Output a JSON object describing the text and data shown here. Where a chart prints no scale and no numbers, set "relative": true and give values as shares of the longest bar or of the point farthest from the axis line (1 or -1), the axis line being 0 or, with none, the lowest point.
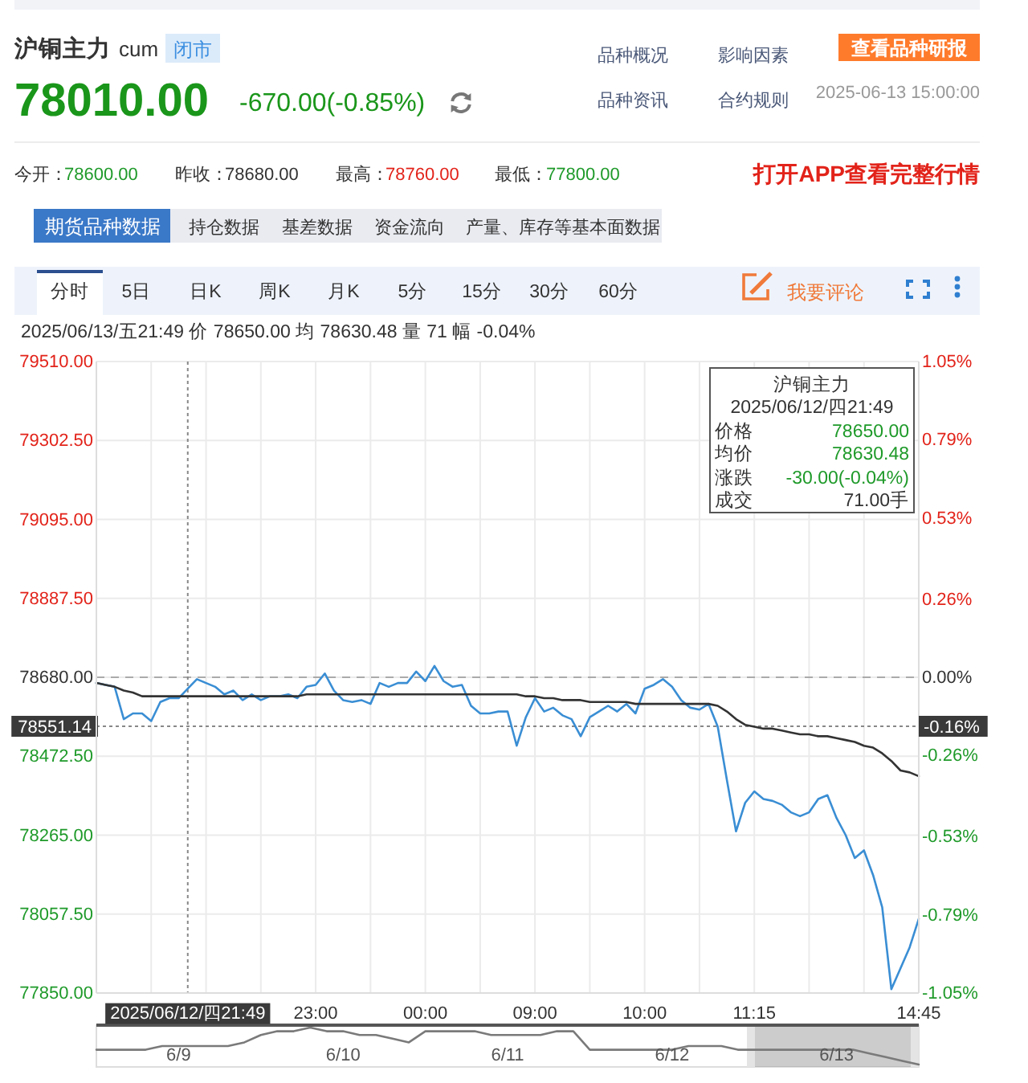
{
  "chart_data": [
    {
      "type": "line",
      "title": "沪铜主力",
      "subtitle": "cum",
      "annotations": [
        "闭市",
        "78010.00",
        "-670.00(-0.85%)",
        "品种概况",
        "影响因素",
        "查看品种研报",
        "品种资讯",
        "合约规则",
        "2025-06-13 15:00:00",
        "今开：",
        "78600.00",
        "昨收：",
        "78680.00",
        "最高：",
        "78760.00",
        "最低：",
        "77800.00",
        "打开APP查看完整行情",
        "期货品种数据",
        "持仓数据",
        "基差数据",
        "资金流向",
        "产量、库存等基本面数据",
        "分时",
        "5日",
        "日K",
        "周K",
        "月K",
        "5分",
        "15分",
        "30分",
        "60分",
        "我要评论",
        "2025/06/13/五21:49 价 78650.00 均 78630.48 量 71 幅 -0.04%",
        "沪铜主力",
        "2025/06/12/四21:49",
        "价格",
        "78650.00",
        "均价",
        "78630.48",
        "涨跌",
        "-30.00(-0.04%)",
        "成交",
        "71.00手",
        "-0.16%"
      ],
      "categories": [
        null,
        null,
        null,
        null,
        null,
        null,
        null,
        null,
        null,
        null,
        "2025/06/12/四21:49",
        null,
        null,
        null,
        null,
        null,
        null,
        null,
        null,
        null,
        null,
        null,
        null,
        null,
        "23:00",
        null,
        null,
        null,
        null,
        null,
        null,
        null,
        null,
        null,
        null,
        null,
        "00:00",
        null,
        null,
        null,
        null,
        null,
        null,
        null,
        null,
        null,
        null,
        null,
        "09:00",
        null,
        null,
        null,
        null,
        null,
        null,
        null,
        null,
        null,
        null,
        null,
        "10:00",
        null,
        null,
        null,
        null,
        null,
        null,
        null,
        null,
        null,
        null,
        null,
        "11:15",
        null,
        null,
        null,
        null,
        null,
        null,
        null,
        null,
        null,
        null,
        null,
        null,
        null,
        null,
        null,
        null,
        null,
        "14:45"
      ],
      "series": [
        {
          "color": "#3a8ed4",
          "values": [
            78665,
            78660,
            78655,
            78570,
            78585,
            78585,
            78565,
            78615,
            78625,
            78625,
            78650,
            78675,
            78665,
            78655,
            78635,
            78645,
            78620,
            78635,
            78620,
            78630,
            78630,
            78635,
            78625,
            78655,
            78660,
            78690,
            78645,
            78620,
            78615,
            78620,
            78610,
            78665,
            78655,
            78665,
            78665,
            78695,
            78670,
            78710,
            78670,
            78655,
            78660,
            78605,
            78585,
            78585,
            78590,
            78590,
            78500,
            78575,
            78625,
            78590,
            78600,
            78580,
            78570,
            78525,
            78575,
            78590,
            78605,
            78590,
            78610,
            78585,
            78650,
            78660,
            78675,
            78655,
            78620,
            78600,
            78595,
            78610,
            78550,
            78410,
            78275,
            78350,
            78380,
            78360,
            78355,
            78345,
            78325,
            78315,
            78325,
            78360,
            78370,
            78310,
            78265,
            78205,
            78225,
            78160,
            78075,
            77860,
            77915,
            77970,
            78045
          ]
        },
        {
          "color": "#333333",
          "values": [
            78665,
            78660,
            78655,
            78645,
            78640,
            78630,
            78630,
            78630,
            78630,
            78630,
            78630,
            78630,
            78630,
            78630,
            78630,
            78630,
            78630,
            78630,
            78630,
            78630,
            78630,
            78630,
            78630,
            78635,
            78635,
            78635,
            78635,
            78635,
            78635,
            78635,
            78635,
            78635,
            78635,
            78635,
            78635,
            78635,
            78635,
            78635,
            78635,
            78635,
            78635,
            78635,
            78635,
            78635,
            78635,
            78635,
            78635,
            78630,
            78630,
            78625,
            78625,
            78620,
            78620,
            78620,
            78615,
            78615,
            78615,
            78615,
            78615,
            78610,
            78610,
            78610,
            78610,
            78610,
            78610,
            78610,
            78610,
            78610,
            78605,
            78590,
            78570,
            78555,
            78550,
            78545,
            78545,
            78540,
            78535,
            78530,
            78530,
            78525,
            78525,
            78520,
            78515,
            78510,
            78500,
            78495,
            78480,
            78460,
            78435,
            78430,
            78420
          ]
        }
      ],
      "ylim": [
        77850,
        79510
      ],
      "yticks": [
        {
          "value": 77850,
          "label": "77850.00"
        },
        {
          "value": 78057.5,
          "label": "78057.50"
        },
        {
          "value": 78265,
          "label": "78265.00"
        },
        {
          "value": 78472.5,
          "label": "78472.50"
        },
        {
          "value": 78680,
          "label": "78680.00"
        },
        {
          "value": 78887.5,
          "label": "78887.50"
        },
        {
          "value": 79095,
          "label": "79095.00"
        },
        {
          "value": 79302.5,
          "label": "79302.50"
        },
        {
          "value": 79510,
          "label": "79510.00"
        }
      ],
      "y2lim": [
        -1.05,
        1.05
      ],
      "y2ticks": [
        {
          "value": -1.05,
          "label": "-1.05%"
        },
        {
          "value": -0.79,
          "label": "-0.79%"
        },
        {
          "value": -0.53,
          "label": "-0.53%"
        },
        {
          "value": -0.26,
          "label": "-0.26%"
        },
        {
          "value": 0,
          "label": "0.00%"
        },
        {
          "value": 0.26,
          "label": "0.26%"
        },
        {
          "value": 0.53,
          "label": "0.53%"
        },
        {
          "value": 0.79,
          "label": "0.79%"
        },
        {
          "value": 1.05,
          "label": "1.05%"
        }
      ],
      "ref_lines": [
        {
          "axis": "y",
          "value": 78680,
          "color": "#aaaaaa",
          "line_style": "dashed"
        },
        {
          "axis": "x",
          "value": "2025/06/12/四21:49",
          "color": "#888888",
          "line_style": "dotted"
        },
        {
          "axis": "y",
          "value": 78551.14,
          "label": "78551.14",
          "color": "#888888",
          "line_style": "dotted"
        }
      ],
      "grid": true
    },
    {
      "type": "line",
      "relative": true,
      "color": "#7a7a7a",
      "categories": [
        null,
        null,
        null,
        null,
        null,
        "6/9",
        null,
        null,
        null,
        null,
        null,
        null,
        null,
        null,
        null,
        "6/10",
        null,
        null,
        null,
        null,
        null,
        null,
        null,
        null,
        null,
        "6/11",
        null,
        null,
        null,
        null,
        null,
        null,
        null,
        null,
        null,
        "6/12",
        null,
        null,
        null,
        null,
        null,
        null,
        null,
        null,
        null,
        "6/13",
        null,
        null,
        null,
        null,
        null
      ],
      "values": [
        0.4,
        0.4,
        0.4,
        0.4,
        0.5,
        0.5,
        0.5,
        0.5,
        0.5,
        0.6,
        0.8,
        0.9,
        0.9,
        1,
        0.9,
        0.9,
        0.8,
        0.8,
        0.7,
        0.6,
        0.9,
        0.9,
        0.9,
        0.9,
        0.8,
        0.8,
        0.8,
        0.8,
        0.9,
        0.9,
        0.4,
        0.4,
        0.4,
        0.4,
        0.4,
        0.4,
        0.5,
        0.5,
        0.5,
        0.4,
        0.4,
        0.4,
        0.4,
        0.4,
        0.4,
        0.4,
        0.4,
        0.3,
        0.2,
        0.1,
        0
      ]
    }
  ]
}
